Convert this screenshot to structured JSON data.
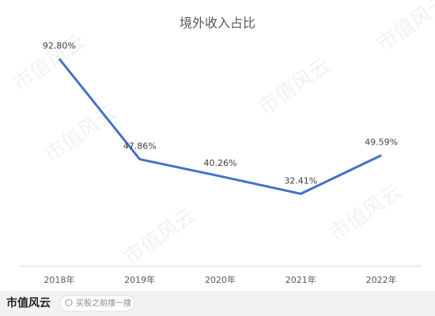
{
  "chart_data": {
    "type": "line",
    "title": "境外收入占比",
    "categories": [
      "2018年",
      "2019年",
      "2020年",
      "2021年",
      "2022年"
    ],
    "values": [
      92.8,
      47.86,
      40.26,
      32.41,
      49.59
    ],
    "value_labels": [
      "92.80%",
      "47.86%",
      "40.26%",
      "32.41%",
      "49.59%"
    ],
    "color": "#4472c4",
    "ylim": [
      0,
      100
    ]
  },
  "watermark": "市值风云",
  "footer": {
    "logo": "市值风云",
    "search": "买股之前搜一搜"
  }
}
